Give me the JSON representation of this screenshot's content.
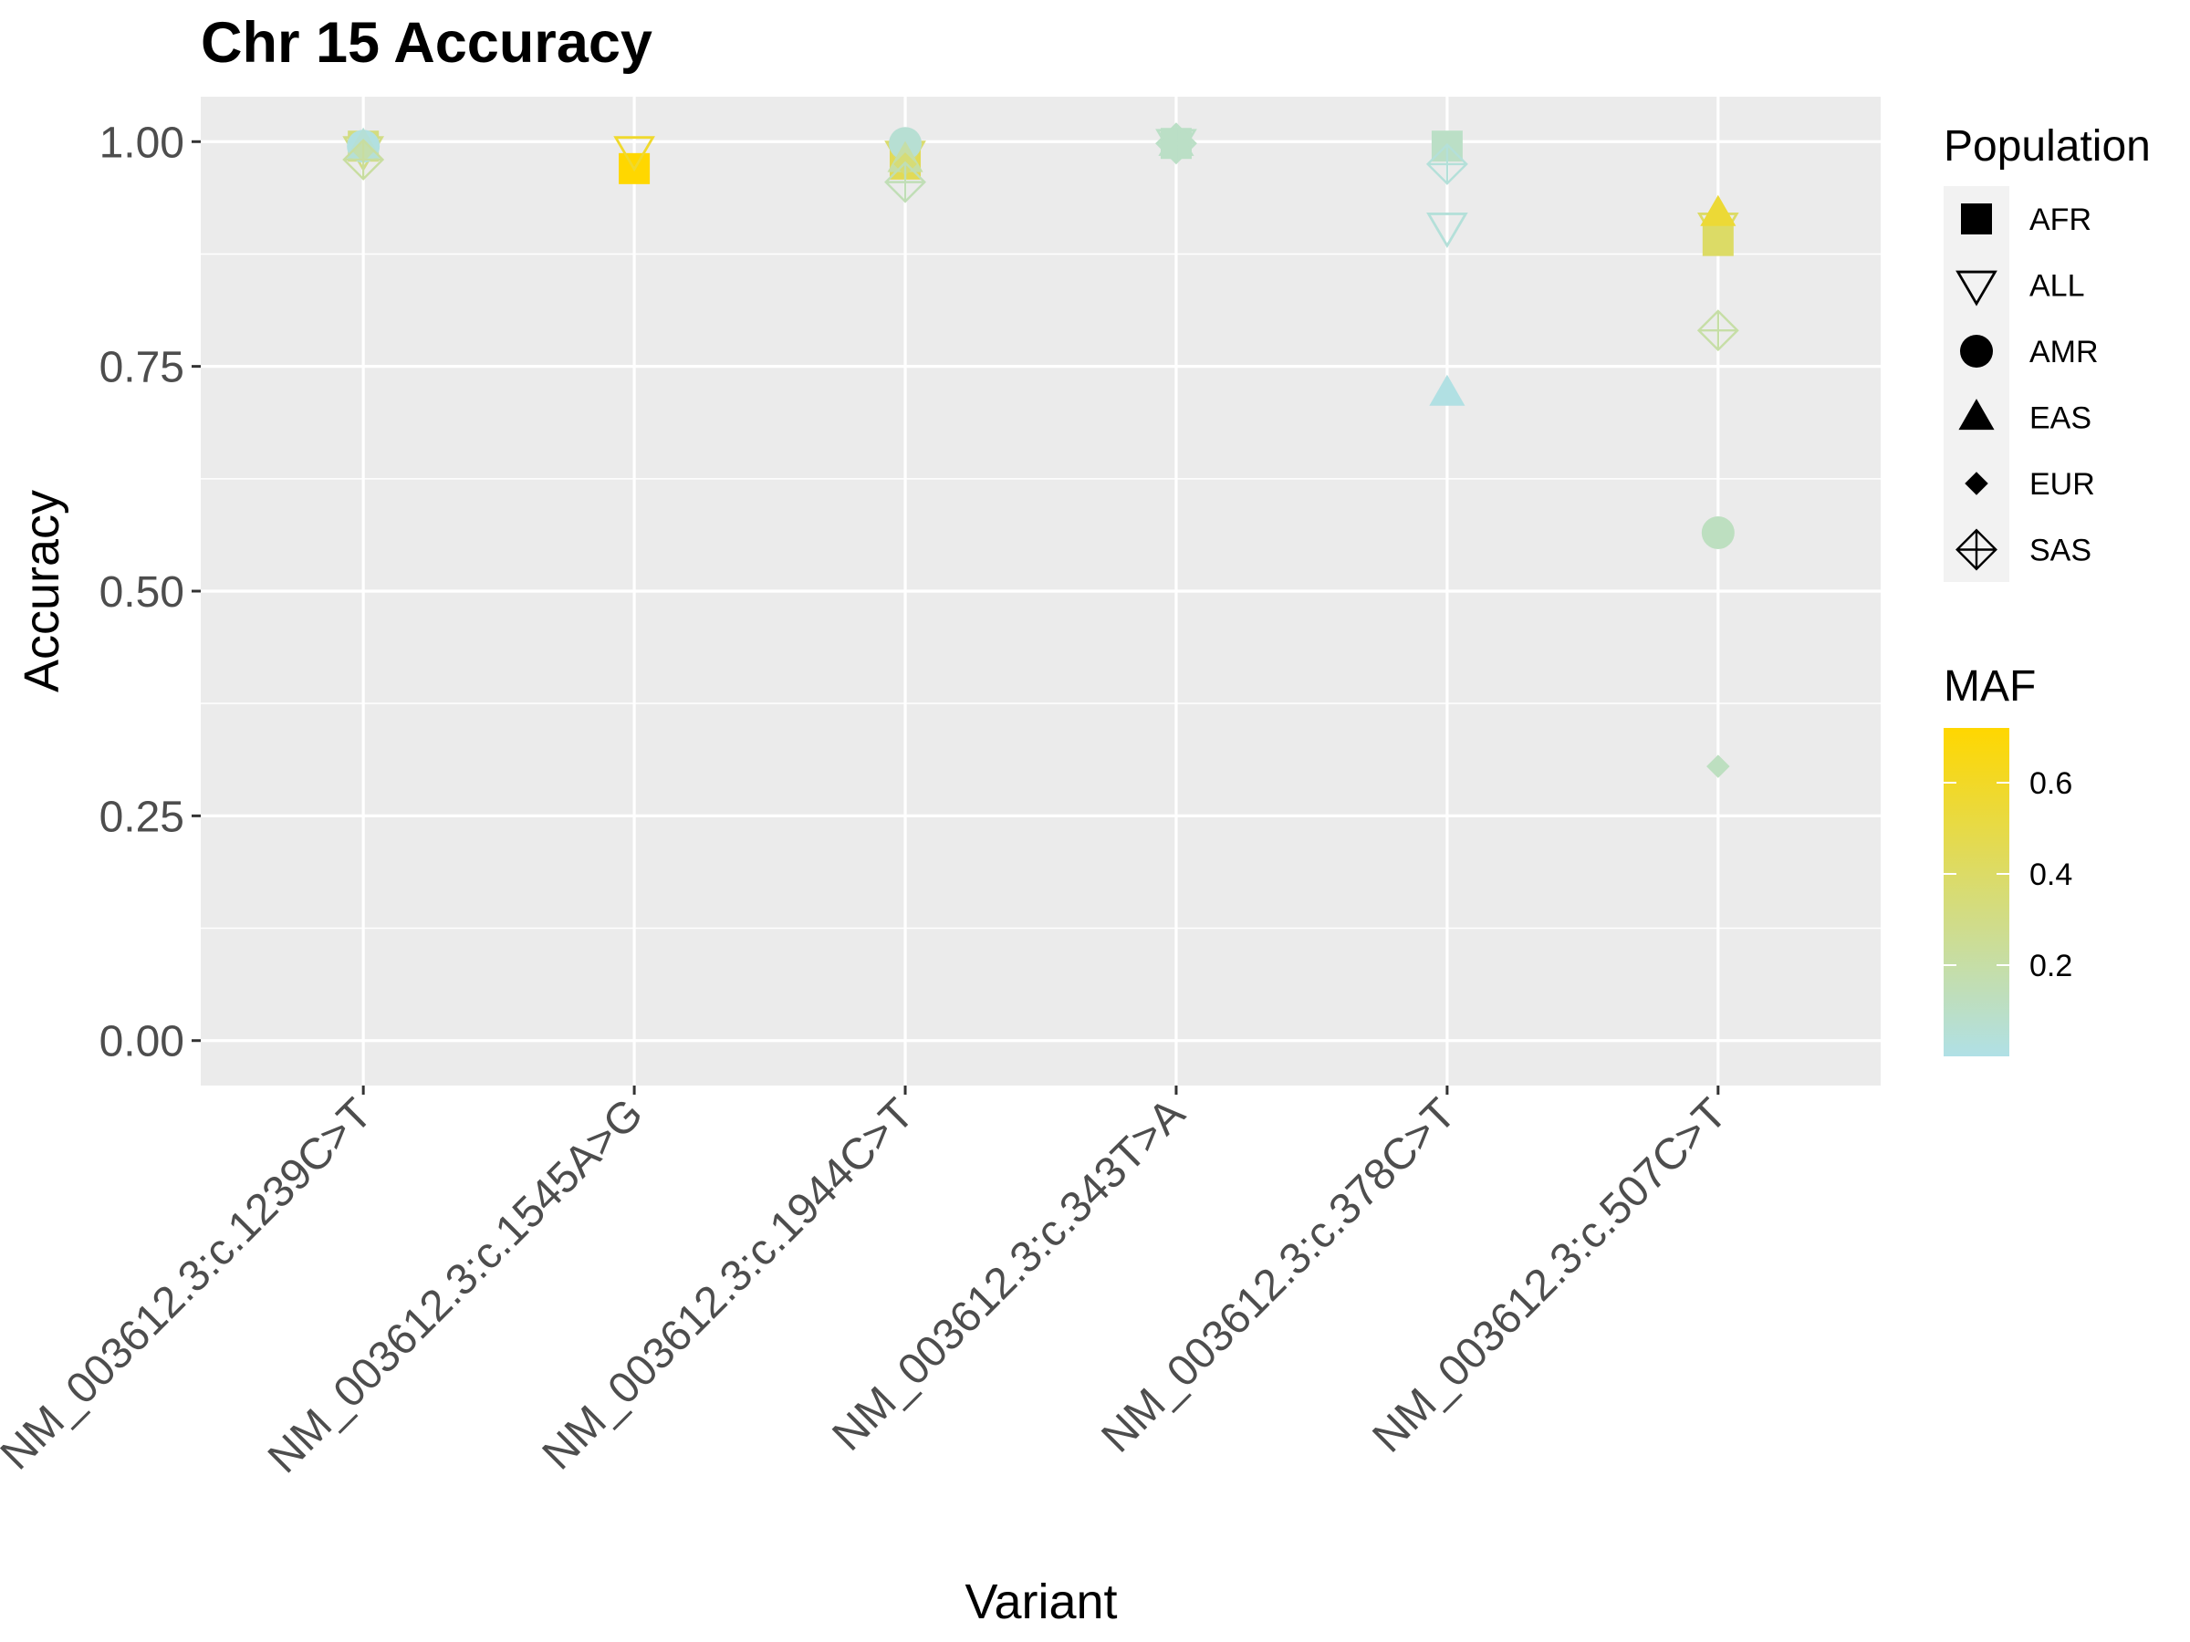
{
  "chart_data": {
    "type": "scatter",
    "title": "Chr 15 Accuracy",
    "xlabel": "Variant",
    "ylabel": "Accuracy",
    "ylim": [
      -0.05,
      1.05
    ],
    "y_ticks": [
      "0.00",
      "0.25",
      "0.50",
      "0.75",
      "1.00"
    ],
    "y_tick_values": [
      0,
      0.25,
      0.5,
      0.75,
      1.0
    ],
    "categories": [
      "NM_003612.3:c.1239C>T",
      "NM_003612.3:c.1545A>G",
      "NM_003612.3:c.1944C>T",
      "NM_003612.3:c.343T>A",
      "NM_003612.3:c.378C>T",
      "NM_003612.3:c.507C>T"
    ],
    "grid": true,
    "legend_placement": "right",
    "shape_legend": {
      "title": "Population",
      "items": [
        {
          "label": "AFR",
          "shape": "square"
        },
        {
          "label": "ALL",
          "shape": "triangle-down-open"
        },
        {
          "label": "AMR",
          "shape": "circle"
        },
        {
          "label": "EAS",
          "shape": "triangle-up"
        },
        {
          "label": "EUR",
          "shape": "diamond"
        },
        {
          "label": "SAS",
          "shape": "diamond-plus-open"
        }
      ]
    },
    "color_legend": {
      "title": "MAF",
      "range": [
        0.0,
        0.72
      ],
      "ticks": [
        "0.2",
        "0.4",
        "0.6"
      ],
      "tick_values": [
        0.2,
        0.4,
        0.6
      ],
      "low_color": "#b0e0e6",
      "high_color": "#ffd700"
    },
    "series": [
      {
        "name": "AFR",
        "values": [
          0.995,
          0.97,
          0.975,
          0.998,
          0.995,
          0.89
        ],
        "maf": [
          0.32,
          0.72,
          0.45,
          0.1,
          0.1,
          0.4
        ]
      },
      {
        "name": "ALL",
        "values": [
          0.99,
          0.99,
          0.985,
          0.998,
          0.905,
          0.905
        ],
        "maf": [
          0.3,
          0.58,
          0.38,
          0.1,
          0.04,
          0.4
        ]
      },
      {
        "name": "AMR",
        "values": [
          0.995,
          null,
          0.998,
          0.998,
          null,
          0.565
        ],
        "maf": [
          0.02,
          null,
          0.06,
          0.1,
          null,
          0.12
        ]
      },
      {
        "name": "EAS",
        "values": [
          0.995,
          null,
          0.98,
          0.998,
          0.72,
          0.92
        ],
        "maf": [
          0.05,
          null,
          0.2,
          0.1,
          0.01,
          0.55
        ]
      },
      {
        "name": "EUR",
        "values": [
          0.99,
          null,
          0.975,
          0.998,
          null,
          0.305
        ],
        "maf": [
          0.18,
          null,
          0.35,
          0.1,
          null,
          0.12
        ]
      },
      {
        "name": "SAS",
        "values": [
          0.98,
          null,
          0.955,
          0.998,
          0.975,
          0.79
        ],
        "maf": [
          0.22,
          null,
          0.15,
          0.1,
          0.04,
          0.2
        ]
      }
    ]
  }
}
